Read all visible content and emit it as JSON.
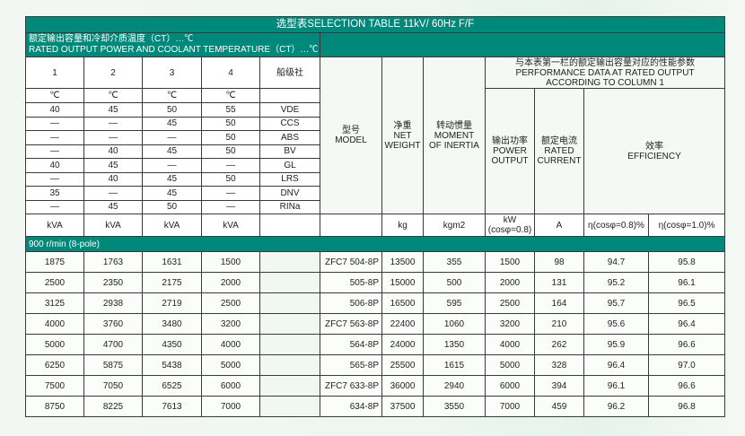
{
  "title": "选型表SELECTION TABLE 11kV/ 60Hz  F/F",
  "band": {
    "zh": "额定输出容量和冷却介质温度（CT）…℃",
    "en": "RATED OUTPUT POWER AND COOLANT TEMPERATURE（CT）…℃"
  },
  "columns": {
    "c1": "1",
    "c2": "2",
    "c3": "3",
    "c4": "4",
    "society": "船级社",
    "deg": "℃"
  },
  "model_header": {
    "zh": "型号",
    "en": "MODEL"
  },
  "weight_header": {
    "zh": "净重",
    "en1": "NET",
    "en2": "WEIGHT"
  },
  "inertia_header": {
    "zh": "转动惯量",
    "en1": "MOMENT",
    "en2": "OF INERTIA"
  },
  "perf_header": {
    "zh": "与本表第一栏的额定输出容量对应的性能参数",
    "en1": "PERFORMANCE DATA AT RATED OUTPUT",
    "en2": "ACCORDING TO COLUMN 1"
  },
  "power_header": {
    "zh": "输出功率",
    "en1": "POWER",
    "en2": "OUTPUT"
  },
  "current_header": {
    "zh": "额定电流",
    "en1": "RATED",
    "en2": "CURRENT"
  },
  "eff_header": {
    "zh": "效率",
    "en": "EFFICIENCY"
  },
  "class_rows": [
    [
      "40",
      "45",
      "50",
      "55",
      "VDE"
    ],
    [
      "—",
      "—",
      "45",
      "50",
      "CCS"
    ],
    [
      "—",
      "—",
      "—",
      "50",
      "ABS"
    ],
    [
      "—",
      "40",
      "45",
      "50",
      "BV"
    ],
    [
      "40",
      "45",
      "—",
      "—",
      "GL"
    ],
    [
      "—",
      "40",
      "45",
      "50",
      "LRS"
    ],
    [
      "35",
      "—",
      "45",
      "—",
      "DNV"
    ],
    [
      "—",
      "45",
      "50",
      "—",
      "RINa"
    ]
  ],
  "units": {
    "kva": "kVA",
    "kg": "kg",
    "kgm2": "kgm2",
    "kw1": "kW",
    "kw2": "(cosφ=0.8)",
    "a": "A",
    "eff08": "η(cosφ=0.8)%",
    "eff10": "η(cosφ=1.0)%"
  },
  "section": "900 r/min (8-pole)",
  "rows": [
    [
      "1875",
      "1763",
      "1631",
      "1500",
      "ZFC7 504-8P",
      "13500",
      "355",
      "1500",
      "98",
      "94.7",
      "95.8"
    ],
    [
      "2500",
      "2350",
      "2175",
      "2000",
      "505-8P",
      "15000",
      "500",
      "2000",
      "131",
      "95.2",
      "96.1"
    ],
    [
      "3125",
      "2938",
      "2719",
      "2500",
      "506-8P",
      "16500",
      "595",
      "2500",
      "164",
      "95.7",
      "96.5"
    ],
    [
      "4000",
      "3760",
      "3480",
      "3200",
      "ZFC7 563-8P",
      "22400",
      "1060",
      "3200",
      "210",
      "95.6",
      "96.4"
    ],
    [
      "5000",
      "4700",
      "4350",
      "4000",
      "564-8P",
      "24000",
      "1350",
      "4000",
      "262",
      "95.9",
      "96.6"
    ],
    [
      "6250",
      "5875",
      "5438",
      "5000",
      "565-8P",
      "25500",
      "1615",
      "5000",
      "328",
      "96.4",
      "97.0"
    ],
    [
      "7500",
      "7050",
      "6525",
      "6000",
      "ZFC7 633-8P",
      "36000",
      "2940",
      "6000",
      "394",
      "96.1",
      "96.6"
    ],
    [
      "8750",
      "8225",
      "7613",
      "7000",
      "634-8P",
      "37500",
      "3550",
      "7000",
      "459",
      "96.2",
      "96.8"
    ]
  ],
  "colors": {
    "header": "#00897b"
  }
}
